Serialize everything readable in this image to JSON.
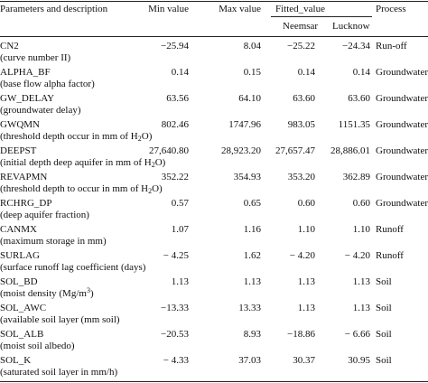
{
  "header": {
    "param": "Parameters and description",
    "min": "Min value",
    "max": "Max value",
    "fitted": "Fitted_value",
    "neemsar": "Neemsar",
    "lucknow": "Lucknow",
    "process": "Process"
  },
  "rows": [
    {
      "name": "CN2",
      "desc": "(curve number II)",
      "min": "−25.94",
      "max": "8.04",
      "neemsar": "−25.22",
      "lucknow": "−24.34",
      "process": "Run-off"
    },
    {
      "name": "ALPHA_BF",
      "desc": "(base flow alpha factor)",
      "min": "0.14",
      "max": "0.15",
      "neemsar": "0.14",
      "lucknow": "0.14",
      "process": "Groundwater"
    },
    {
      "name": "GW_DELAY",
      "desc": "(groundwater delay)",
      "min": "63.56",
      "max": "64.10",
      "neemsar": "63.60",
      "lucknow": "63.60",
      "process": "Groundwater"
    },
    {
      "name": "GWQMN",
      "desc_pre": "(threshold depth occur in mm of H",
      "desc_sub": "2",
      "desc_post": "O)",
      "min": "802.46",
      "max": "1747.96",
      "neemsar": "983.05",
      "lucknow": "1151.35",
      "process": "Groundwater"
    },
    {
      "name": "DEEPST",
      "desc_pre": "(initial depth deep aquifer in mm of H",
      "desc_sub": "2",
      "desc_post": "O)",
      "min": "27,640.80",
      "max": "28,923.20",
      "neemsar": "27,657.47",
      "lucknow": "28,886.01",
      "process": "Groundwater"
    },
    {
      "name": "REVAPMN",
      "desc_pre": "(threshold depth to occur in mm of H",
      "desc_sub": "2",
      "desc_post": "O)",
      "min": "352.22",
      "max": "354.93",
      "neemsar": "353.20",
      "lucknow": "362.89",
      "process": "Groundwater"
    },
    {
      "name": "RCHRG_DP",
      "desc": "(deep aquifer fraction)",
      "min": "0.57",
      "max": "0.65",
      "neemsar": "0.60",
      "lucknow": "0.60",
      "process": "Groundwater"
    },
    {
      "name": "CANMX",
      "desc": "(maximum storage in mm)",
      "min": "1.07",
      "max": "1.16",
      "neemsar": "1.10",
      "lucknow": "1.10",
      "process": "Runoff"
    },
    {
      "name": "SURLAG",
      "desc": "(surface runoff lag coefficient (days)",
      "min": "− 4.25",
      "max": "1.62",
      "neemsar": "− 4.20",
      "lucknow": "− 4.20",
      "process": "Runoff"
    },
    {
      "name": "SOL_BD",
      "desc_pre": "(moist density (Mg/m",
      "desc_sup": "3",
      "desc_post": ")",
      "min": "1.13",
      "max": "1.13",
      "neemsar": "1.13",
      "lucknow": "1.13",
      "process": "Soil"
    },
    {
      "name": "SOL_AWC",
      "desc": "(available soil layer (mm soil)",
      "min": "−13.33",
      "max": "13.33",
      "neemsar": "1.13",
      "lucknow": "1.13",
      "process": "Soil"
    },
    {
      "name": "SOL_ALB",
      "desc": "(moist soil albedo)",
      "min": "−20.53",
      "max": "8.93",
      "neemsar": "−18.86",
      "lucknow": "− 6.66",
      "process": "Soil"
    },
    {
      "name": "SOL_K",
      "desc": "(saturated soil layer in mm/h)",
      "min": "− 4.33",
      "max": "37.03",
      "neemsar": "30.37",
      "lucknow": "30.95",
      "process": "Soil"
    }
  ]
}
